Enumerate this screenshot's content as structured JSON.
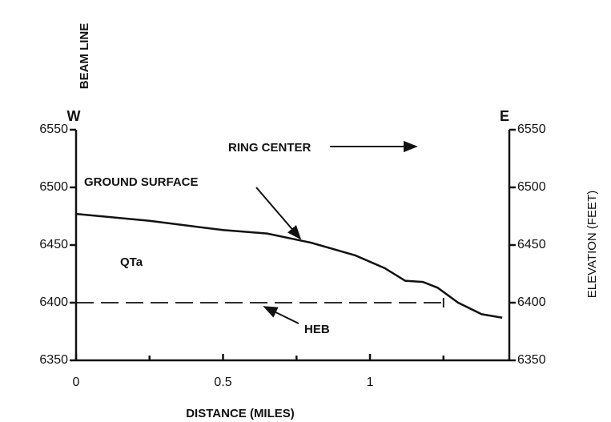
{
  "chart_data": {
    "type": "line",
    "x_label": "DISTANCE (MILES)",
    "y2_label": "ELEVATION (FEET)",
    "annotations": {
      "top": "BEAM LINE",
      "west": "W",
      "east": "E",
      "ring": "RING CENTER",
      "ground": "GROUND SURFACE",
      "unit": "QTa"
    },
    "series": [
      {
        "name": "GROUND SURFACE",
        "color": "#111",
        "dash": false,
        "x": [
          0,
          0.25,
          0.5,
          0.65,
          0.8,
          0.95,
          1.05,
          1.12,
          1.18,
          1.23,
          1.3,
          1.38,
          1.45
        ],
        "values": [
          6477,
          6471,
          6463,
          6460,
          6452,
          6441,
          6430,
          6419,
          6418,
          6413,
          6400,
          6390,
          6387
        ]
      },
      {
        "name": "HEB",
        "color": "#111",
        "dash": true,
        "x": [
          0,
          1.25
        ],
        "values": [
          6400,
          6400
        ]
      }
    ],
    "xlim": [
      0,
      1.474
    ],
    "xticks": [
      0,
      0.5,
      1
    ],
    "xminor_ticks": [
      0.25,
      0.75,
      1.25
    ],
    "ylim": [
      6350,
      6550
    ],
    "yticks": [
      6350,
      6400,
      6450,
      6500,
      6550
    ],
    "y2lim": [
      6350,
      6550
    ],
    "y2ticks": [
      6350,
      6400,
      6450,
      6500,
      6550
    ]
  }
}
